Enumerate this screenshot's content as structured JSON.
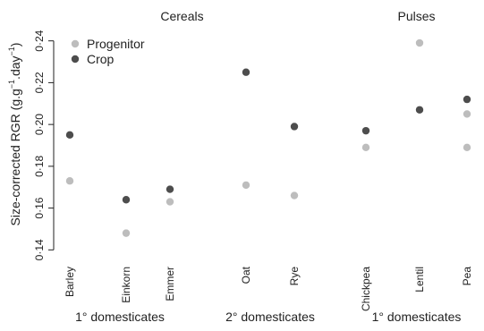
{
  "chart_data": {
    "type": "scatter",
    "ylabel_main": "Size-corrected RGR (g.g",
    "ylabel_sup1": "−1",
    "ylabel_mid": ".day",
    "ylabel_sup2": "−1",
    "ylabel_end": ")",
    "ylim": [
      0.135,
      0.245
    ],
    "yticks": [
      {
        "value": 0.14,
        "label": "0·14"
      },
      {
        "value": 0.16,
        "label": "0·16"
      },
      {
        "value": 0.18,
        "label": "0·18"
      },
      {
        "value": 0.2,
        "label": "0·20"
      },
      {
        "value": 0.22,
        "label": "0·22"
      },
      {
        "value": 0.24,
        "label": "0·24"
      }
    ],
    "categories": [
      "Barley",
      "Einkorn",
      "Emmer",
      "Oat",
      "Rye",
      "Chickpea",
      "Lentil",
      "Pea"
    ],
    "series": [
      {
        "name": "Progenitor",
        "color": "#bdbdbd",
        "points": [
          {
            "category": "Barley",
            "value": 0.173
          },
          {
            "category": "Einkorn",
            "value": 0.148
          },
          {
            "category": "Emmer",
            "value": 0.163
          },
          {
            "category": "Oat",
            "value": 0.171
          },
          {
            "category": "Rye",
            "value": 0.166
          },
          {
            "category": "Chickpea",
            "value": 0.189
          },
          {
            "category": "Lentil",
            "value": 0.239
          },
          {
            "category": "Pea",
            "value": 0.205
          },
          {
            "category": "Pea",
            "value": 0.189
          }
        ]
      },
      {
        "name": "Crop",
        "color": "#4d4d4d",
        "points": [
          {
            "category": "Barley",
            "value": 0.195
          },
          {
            "category": "Einkorn",
            "value": 0.164
          },
          {
            "category": "Emmer",
            "value": 0.169
          },
          {
            "category": "Oat",
            "value": 0.225
          },
          {
            "category": "Rye",
            "value": 0.199
          },
          {
            "category": "Chickpea",
            "value": 0.197
          },
          {
            "category": "Lentil",
            "value": 0.207
          },
          {
            "category": "Pea",
            "value": 0.212
          }
        ]
      }
    ],
    "top_groups": [
      {
        "label": "Cereals",
        "categories": [
          "Barley",
          "Einkorn",
          "Emmer",
          "Oat",
          "Rye"
        ]
      },
      {
        "label": "Pulses",
        "categories": [
          "Chickpea",
          "Lentil",
          "Pea"
        ]
      }
    ],
    "bottom_groups": [
      {
        "label": "1° domesticates",
        "categories": [
          "Barley",
          "Einkorn",
          "Emmer"
        ]
      },
      {
        "label": "2° domesticates",
        "categories": [
          "Oat",
          "Rye"
        ]
      },
      {
        "label": "1° domesticates",
        "categories": [
          "Chickpea",
          "Lentil",
          "Pea"
        ]
      }
    ],
    "legend_position": "top-left"
  }
}
